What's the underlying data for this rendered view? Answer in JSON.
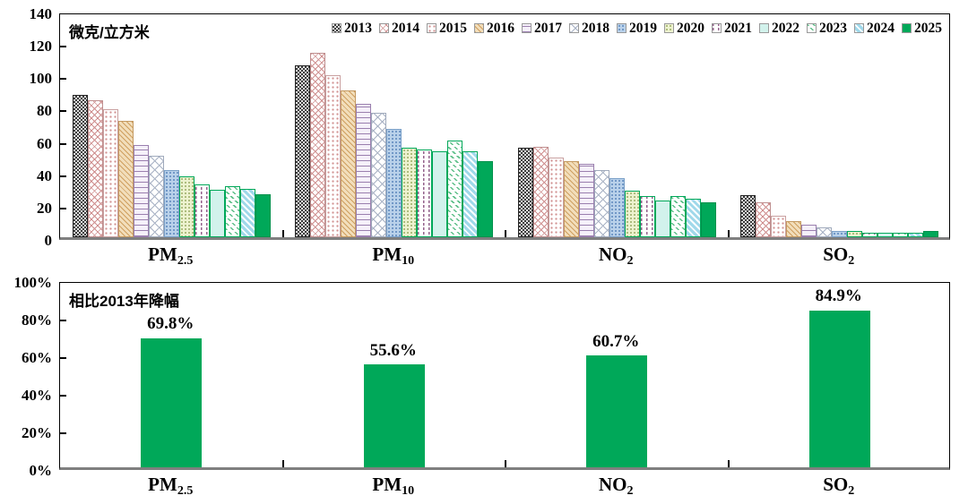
{
  "colors": {
    "accent_green": "#00a859",
    "axis_gray": "#7f7f7f",
    "text": "#000000"
  },
  "chart_data": [
    {
      "type": "bar",
      "inner_label": "微克/立方米",
      "ylim": [
        0,
        140
      ],
      "yticks": [
        0,
        20,
        40,
        60,
        80,
        100,
        120,
        140
      ],
      "grid": false,
      "legend_position": "top-inside",
      "categories": [
        "PM2.5",
        "PM10",
        "NO2",
        "SO2"
      ],
      "category_display": [
        {
          "base": "PM",
          "sub": "2.5"
        },
        {
          "base": "PM",
          "sub": "10"
        },
        {
          "base": "NO",
          "sub": "2"
        },
        {
          "base": "SO",
          "sub": "2"
        }
      ],
      "series": [
        {
          "name": "2013",
          "values": [
            89.5,
            108.1,
            56.0,
            26.5
          ]
        },
        {
          "name": "2014",
          "values": [
            85.9,
            115.8,
            56.7,
            21.8
          ]
        },
        {
          "name": "2015",
          "values": [
            80.6,
            101.5,
            50,
            13.5
          ]
        },
        {
          "name": "2016",
          "values": [
            73,
            92,
            48,
            10
          ]
        },
        {
          "name": "2017",
          "values": [
            58,
            84,
            46,
            8
          ]
        },
        {
          "name": "2018",
          "values": [
            51,
            78,
            42,
            6
          ]
        },
        {
          "name": "2019",
          "values": [
            42,
            68,
            37,
            4
          ]
        },
        {
          "name": "2020",
          "values": [
            38,
            56,
            29,
            4
          ]
        },
        {
          "name": "2021",
          "values": [
            33,
            55,
            26,
            3
          ]
        },
        {
          "name": "2022",
          "values": [
            30,
            54,
            23,
            3
          ]
        },
        {
          "name": "2023",
          "values": [
            32,
            61,
            26,
            3
          ]
        },
        {
          "name": "2024",
          "values": [
            30.5,
            54,
            24,
            3
          ]
        },
        {
          "name": "2025",
          "values": [
            27,
            48,
            22,
            4
          ]
        }
      ]
    },
    {
      "type": "bar",
      "inner_label": "相比2013年降幅",
      "ylim": [
        0,
        100
      ],
      "yticks": [
        "0%",
        "20%",
        "40%",
        "60%",
        "80%",
        "100%"
      ],
      "ytick_values": [
        0,
        20,
        40,
        60,
        80,
        100
      ],
      "grid": false,
      "categories": [
        "PM2.5",
        "PM10",
        "NO2",
        "SO2"
      ],
      "category_display": [
        {
          "base": "PM",
          "sub": "2.5"
        },
        {
          "base": "PM",
          "sub": "10"
        },
        {
          "base": "NO",
          "sub": "2"
        },
        {
          "base": "SO",
          "sub": "2"
        }
      ],
      "values": [
        69.8,
        55.6,
        60.7,
        84.9
      ],
      "value_labels": [
        "69.8%",
        "55.6%",
        "60.7%",
        "84.9%"
      ],
      "bar_color": "#00a859"
    }
  ]
}
